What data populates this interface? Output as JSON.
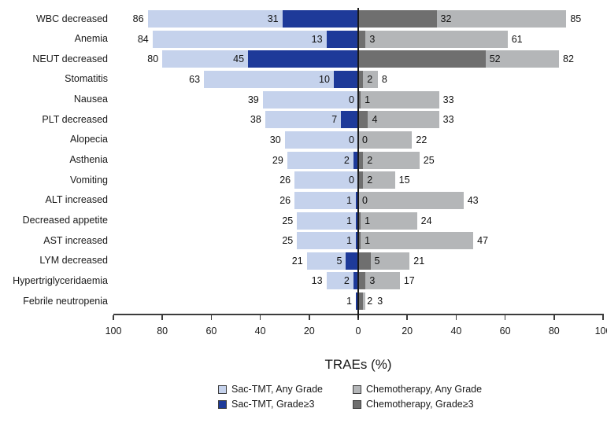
{
  "colors": {
    "sac_any": "#c5d2ec",
    "sac_g3": "#1e3a99",
    "chemo_any": "#b4b6b8",
    "chemo_g3": "#6f6f6f",
    "axis": "#3c3c3c",
    "zero_line": "#1a1a1a",
    "text": "#111111"
  },
  "chart_data": {
    "type": "bar",
    "orientation": "horizontal-diverging-tornado",
    "title": "",
    "xlabel": "TRAEs (%)",
    "axis_ticks": [
      100,
      80,
      60,
      40,
      20,
      0,
      20,
      40,
      60,
      80,
      100
    ],
    "xlim": [
      -100,
      100
    ],
    "grid": false,
    "legend_position": "bottom",
    "legend": [
      {
        "key": "sac_any",
        "label": "Sac-TMT, Any Grade"
      },
      {
        "key": "chemo_any",
        "label": "Chemotherapy, Any Grade"
      },
      {
        "key": "sac_g3",
        "label": "Sac-TMT, Grade≥3"
      },
      {
        "key": "chemo_g3",
        "label": "Chemotherapy, Grade≥3"
      }
    ],
    "series_note": "sac_any/sac_g3 plotted left of zero; chemo_any/chemo_g3 plotted right of zero; Grade>=3 overlays Any Grade from the zero line",
    "rows": [
      {
        "label": "WBC decreased",
        "sac_any": 86,
        "sac_g3": 31,
        "chemo_g3": 32,
        "chemo_any": 85
      },
      {
        "label": "Anemia",
        "sac_any": 84,
        "sac_g3": 13,
        "chemo_g3": 3,
        "chemo_any": 61
      },
      {
        "label": "NEUT decreased",
        "sac_any": 80,
        "sac_g3": 45,
        "chemo_g3": 52,
        "chemo_any": 82
      },
      {
        "label": "Stomatitis",
        "sac_any": 63,
        "sac_g3": 10,
        "chemo_g3": 2,
        "chemo_any": 8
      },
      {
        "label": "Nausea",
        "sac_any": 39,
        "sac_g3": 0,
        "chemo_g3": 1,
        "chemo_any": 33
      },
      {
        "label": "PLT decreased",
        "sac_any": 38,
        "sac_g3": 7,
        "chemo_g3": 4,
        "chemo_any": 33
      },
      {
        "label": "Alopecia",
        "sac_any": 30,
        "sac_g3": 0,
        "chemo_g3": 0,
        "chemo_any": 22
      },
      {
        "label": "Asthenia",
        "sac_any": 29,
        "sac_g3": 2,
        "chemo_g3": 2,
        "chemo_any": 25
      },
      {
        "label": "Vomiting",
        "sac_any": 26,
        "sac_g3": 0,
        "chemo_g3": 2,
        "chemo_any": 15
      },
      {
        "label": "ALT increased",
        "sac_any": 26,
        "sac_g3": 1,
        "chemo_g3": 0,
        "chemo_any": 43
      },
      {
        "label": "Decreased appetite",
        "sac_any": 25,
        "sac_g3": 1,
        "chemo_g3": 1,
        "chemo_any": 24
      },
      {
        "label": "AST increased",
        "sac_any": 25,
        "sac_g3": 1,
        "chemo_g3": 1,
        "chemo_any": 47
      },
      {
        "label": "LYM decreased",
        "sac_any": 21,
        "sac_g3": 5,
        "chemo_g3": 5,
        "chemo_any": 21
      },
      {
        "label": "Hypertriglyceridaemia",
        "sac_any": 13,
        "sac_g3": 2,
        "chemo_g3": 3,
        "chemo_any": 17
      },
      {
        "label": "Febrile neutropenia",
        "sac_any": 1,
        "sac_g3": 1,
        "chemo_g3": 2,
        "chemo_any": 3,
        "hide_sac_any_label": true
      }
    ]
  }
}
